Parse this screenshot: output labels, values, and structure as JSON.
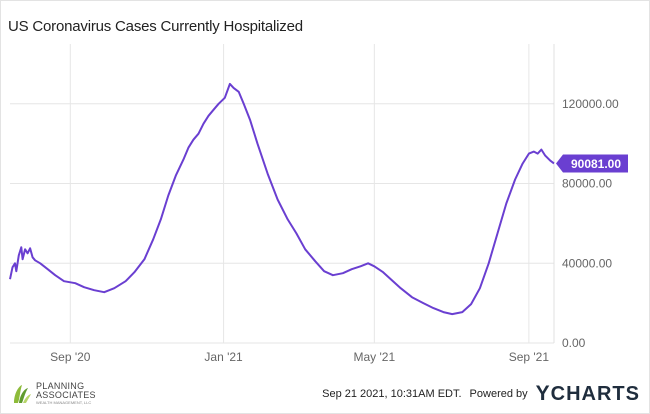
{
  "header": {
    "title": "US Coronavirus Cases Currently Hospitalized"
  },
  "footer": {
    "timestamp": "Sep 21 2021, 10:31AM EDT.",
    "powered_by": "Powered by",
    "brand_y": "Y",
    "brand_rest": "CHARTS"
  },
  "logo": {
    "line1": "PLANNING",
    "line2": "ASSOCIATES",
    "tagline": "WEALTH MANAGEMENT, LLC"
  },
  "colors": {
    "series": "#6a3fd1",
    "grid": "#e6e6e6",
    "axis_text": "#666666"
  },
  "chart_data": {
    "type": "line",
    "title": "US Coronavirus Cases Currently Hospitalized",
    "xlabel": "",
    "ylabel": "",
    "x_tick_labels": [
      "Sep '20",
      "Jan '21",
      "May '21",
      "Sep '21"
    ],
    "y_tick_labels": [
      "0.00",
      "40000.00",
      "80000.00",
      "120000.00"
    ],
    "y_ticks": [
      0,
      40000,
      80000,
      120000
    ],
    "ylim": [
      0,
      150000
    ],
    "xlim": [
      "2020-07-15",
      "2021-09-21"
    ],
    "grid": true,
    "last_value_label": "90081.00",
    "series": [
      {
        "values": [
          [
            "2020-07-15",
            32000
          ],
          [
            "2020-07-17",
            38000
          ],
          [
            "2020-07-19",
            40000
          ],
          [
            "2020-07-20",
            36000
          ],
          [
            "2020-07-22",
            44000
          ],
          [
            "2020-07-24",
            48000
          ],
          [
            "2020-07-25",
            42000
          ],
          [
            "2020-07-27",
            47000
          ],
          [
            "2020-07-29",
            45000
          ],
          [
            "2020-07-31",
            47500
          ],
          [
            "2020-08-02",
            43000
          ],
          [
            "2020-08-04",
            41500
          ],
          [
            "2020-08-08",
            40000
          ],
          [
            "2020-08-14",
            37000
          ],
          [
            "2020-08-20",
            34000
          ],
          [
            "2020-08-27",
            31000
          ],
          [
            "2020-09-05",
            30000
          ],
          [
            "2020-09-12",
            28000
          ],
          [
            "2020-09-20",
            26500
          ],
          [
            "2020-09-28",
            25500
          ],
          [
            "2020-10-06",
            27500
          ],
          [
            "2020-10-15",
            31000
          ],
          [
            "2020-10-22",
            35500
          ],
          [
            "2020-10-30",
            42000
          ],
          [
            "2020-11-06",
            52000
          ],
          [
            "2020-11-12",
            62000
          ],
          [
            "2020-11-18",
            74000
          ],
          [
            "2020-11-24",
            84000
          ],
          [
            "2020-11-30",
            92000
          ],
          [
            "2020-12-04",
            98000
          ],
          [
            "2020-12-08",
            102000
          ],
          [
            "2020-12-12",
            105000
          ],
          [
            "2020-12-16",
            110000
          ],
          [
            "2020-12-20",
            114000
          ],
          [
            "2020-12-24",
            117000
          ],
          [
            "2020-12-28",
            120000
          ],
          [
            "2021-01-02",
            123000
          ],
          [
            "2021-01-06",
            130000
          ],
          [
            "2021-01-09",
            128000
          ],
          [
            "2021-01-13",
            126000
          ],
          [
            "2021-01-17",
            120000
          ],
          [
            "2021-01-22",
            112000
          ],
          [
            "2021-01-28",
            100000
          ],
          [
            "2021-02-05",
            85000
          ],
          [
            "2021-02-13",
            72000
          ],
          [
            "2021-02-21",
            62000
          ],
          [
            "2021-02-28",
            55000
          ],
          [
            "2021-03-07",
            47000
          ],
          [
            "2021-03-15",
            41000
          ],
          [
            "2021-03-22",
            36000
          ],
          [
            "2021-03-29",
            34000
          ],
          [
            "2021-04-06",
            35000
          ],
          [
            "2021-04-13",
            37000
          ],
          [
            "2021-04-20",
            38500
          ],
          [
            "2021-04-26",
            40000
          ],
          [
            "2021-05-01",
            38500
          ],
          [
            "2021-05-08",
            35500
          ],
          [
            "2021-05-15",
            31500
          ],
          [
            "2021-05-22",
            27500
          ],
          [
            "2021-05-31",
            23000
          ],
          [
            "2021-06-09",
            20000
          ],
          [
            "2021-06-17",
            17500
          ],
          [
            "2021-06-25",
            15500
          ],
          [
            "2021-07-02",
            14500
          ],
          [
            "2021-07-10",
            15500
          ],
          [
            "2021-07-17",
            19500
          ],
          [
            "2021-07-24",
            27500
          ],
          [
            "2021-07-31",
            40000
          ],
          [
            "2021-08-07",
            55000
          ],
          [
            "2021-08-14",
            70000
          ],
          [
            "2021-08-21",
            82000
          ],
          [
            "2021-08-27",
            90000
          ],
          [
            "2021-09-01",
            95000
          ],
          [
            "2021-09-05",
            96000
          ],
          [
            "2021-09-08",
            95000
          ],
          [
            "2021-09-11",
            97000
          ],
          [
            "2021-09-14",
            94000
          ],
          [
            "2021-09-18",
            91500
          ],
          [
            "2021-09-21",
            90081
          ]
        ]
      }
    ]
  }
}
